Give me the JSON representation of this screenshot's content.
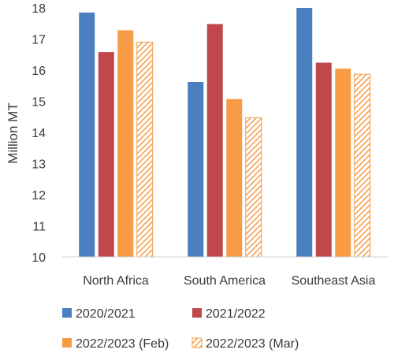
{
  "chart_data": {
    "type": "bar",
    "ylabel": "Million MT",
    "ylim": [
      10,
      18
    ],
    "yticks": [
      "10",
      "11",
      "12",
      "13",
      "14",
      "15",
      "16",
      "17",
      "18"
    ],
    "grid": false,
    "legend_position": "bottom",
    "categories": [
      "North Africa",
      "South America",
      "Southeast Asia"
    ],
    "series": [
      {
        "name": "2020/2021",
        "color": "#4a7ebf",
        "pattern": "solid",
        "values": [
          17.85,
          15.62,
          18.05
        ]
      },
      {
        "name": "2021/2022",
        "color": "#c0484a",
        "pattern": "solid",
        "values": [
          16.58,
          17.48,
          16.24
        ]
      },
      {
        "name": "2022/2023 (Feb)",
        "color": "#f79b46",
        "pattern": "solid",
        "values": [
          17.28,
          15.07,
          16.05
        ]
      },
      {
        "name": "2022/2023 (Mar)",
        "color": "#f79b46",
        "pattern": "hatched",
        "values": [
          16.9,
          14.47,
          15.87
        ]
      }
    ]
  }
}
